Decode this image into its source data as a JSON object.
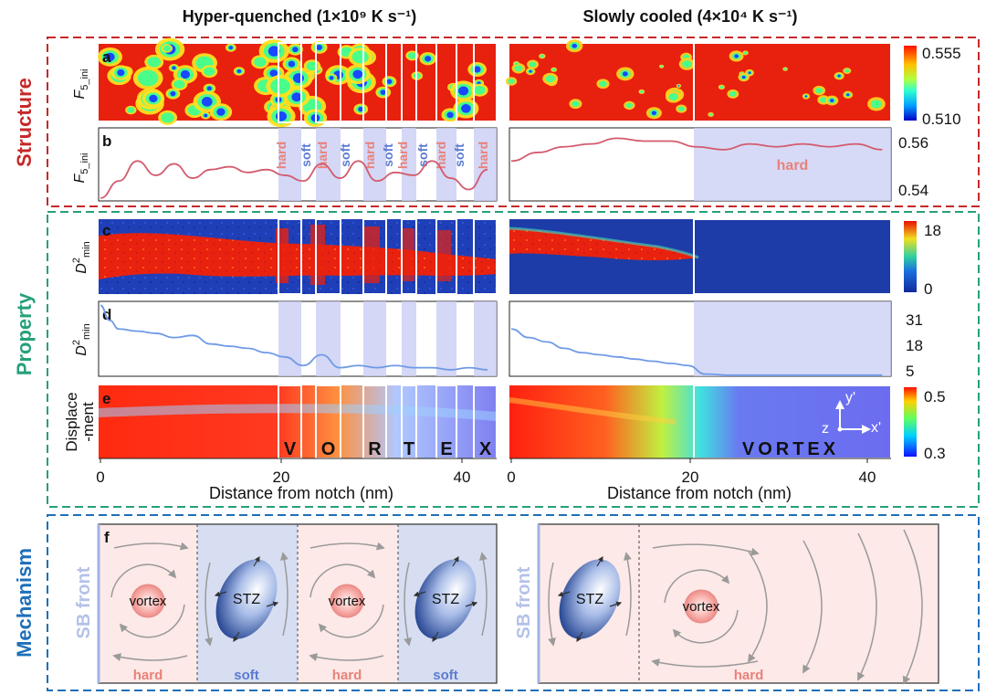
{
  "header": {
    "left_title": "Hyper-quenched (1×10⁹ K s⁻¹)",
    "right_title": "Slowly cooled (4×10⁴ K s⁻¹)"
  },
  "sections": {
    "structure": "Structure",
    "property": "Property",
    "mechanism": "Mechanism"
  },
  "panels": {
    "a": {
      "letter": "a",
      "ylabel": "F5_ini",
      "ylabel_base": "F",
      "ylabel_sub": "5_ini",
      "colorbar": {
        "max": "0.555",
        "min": "0.510"
      }
    },
    "b": {
      "letter": "b",
      "ylabel_base": "F",
      "ylabel_sub": "5_ini",
      "ticks": [
        "0.56",
        "0.54"
      ]
    },
    "c": {
      "letter": "c",
      "ylabel_base": "D",
      "ylabel_sup": "2",
      "ylabel_sub": "min",
      "colorbar": {
        "max": "18",
        "min": "0"
      }
    },
    "d": {
      "letter": "d",
      "ylabel_base": "D",
      "ylabel_sup": "2",
      "ylabel_sub": "min",
      "ticks": [
        "31",
        "18",
        "5"
      ]
    },
    "e": {
      "letter": "e",
      "ylabel_line1": "Displace",
      "ylabel_line2": "-ment",
      "colorbar": {
        "max": "0.5",
        "min": "0.3"
      },
      "vortex_letters": [
        "V",
        "O",
        "R",
        "T",
        "E",
        "X"
      ],
      "vortex_word": "VORTEX",
      "axes_labels": {
        "y": "y'",
        "x": "x'",
        "z": "z"
      }
    },
    "f": {
      "letter": "f"
    }
  },
  "band_labels_left": [
    {
      "text": "hard",
      "kind": "hard"
    },
    {
      "text": "soft",
      "kind": "soft"
    },
    {
      "text": "hard",
      "kind": "hard"
    },
    {
      "text": "soft",
      "kind": "soft"
    },
    {
      "text": "hard",
      "kind": "hard"
    },
    {
      "text": "soft",
      "kind": "soft"
    },
    {
      "text": "hard",
      "kind": "hard"
    },
    {
      "text": "soft",
      "kind": "soft"
    },
    {
      "text": "hard",
      "kind": "hard"
    },
    {
      "text": "soft",
      "kind": "soft"
    },
    {
      "text": "hard",
      "kind": "hard"
    }
  ],
  "band_label_right": "hard",
  "xaxis": {
    "label": "Distance from notch (nm)",
    "ticks": [
      "0",
      "20",
      "40"
    ]
  },
  "mechanism": {
    "sb_front": "SB front",
    "vortex": "vortex",
    "stz": "STZ",
    "hard": "hard",
    "soft": "soft"
  },
  "colors": {
    "structure_border": "#c62828",
    "property_border": "#26a07a",
    "mechanism_border": "#1e6fb8",
    "hard_text": "#e8827b",
    "soft_text": "#5b7bd0",
    "band_fill": "#c9cdf3",
    "curve_b": "#d35b6e",
    "curve_d": "#6f9ae6"
  },
  "chart_data": [
    {
      "type": "line",
      "panel": "b (hyper-quenched)",
      "x": [
        0,
        2,
        4,
        6,
        8,
        10,
        12,
        14,
        16,
        18,
        20,
        22,
        24,
        26,
        28,
        30,
        32,
        34,
        36,
        38,
        40,
        42
      ],
      "y": [
        0.538,
        0.544,
        0.551,
        0.546,
        0.55,
        0.545,
        0.548,
        0.549,
        0.547,
        0.548,
        0.546,
        0.544,
        0.55,
        0.545,
        0.551,
        0.544,
        0.547,
        0.546,
        0.551,
        0.545,
        0.541,
        0.548
      ],
      "xlim": [
        0,
        43
      ],
      "ylim": [
        0.537,
        0.562
      ]
    },
    {
      "type": "line",
      "panel": "b (slowly cooled)",
      "x": [
        0,
        3,
        6,
        9,
        12,
        15,
        18,
        21,
        24,
        27,
        30,
        33,
        36,
        39,
        42
      ],
      "y": [
        0.551,
        0.554,
        0.556,
        0.557,
        0.559,
        0.558,
        0.558,
        0.556,
        0.555,
        0.557,
        0.556,
        0.557,
        0.556,
        0.557,
        0.555
      ],
      "xlim": [
        0,
        43
      ],
      "ylim": [
        0.537,
        0.562
      ]
    },
    {
      "type": "line",
      "panel": "d (hyper-quenched)",
      "x": [
        0,
        1,
        2,
        4,
        6,
        8,
        10,
        12,
        14,
        16,
        18,
        20,
        22,
        24,
        26,
        28,
        30,
        32,
        34,
        36,
        38,
        40,
        42
      ],
      "y": [
        35,
        28,
        24,
        23,
        22,
        20,
        21,
        17,
        16,
        15,
        13,
        11,
        7,
        12,
        6,
        7,
        6,
        7,
        6,
        6,
        5,
        6,
        5
      ],
      "xlim": [
        0,
        43
      ],
      "ylim": [
        2,
        36
      ]
    },
    {
      "type": "line",
      "panel": "d (slowly cooled)",
      "x": [
        0,
        2,
        4,
        6,
        8,
        10,
        12,
        14,
        16,
        18,
        20,
        22,
        25,
        30,
        35,
        40,
        42
      ],
      "y": [
        24,
        20,
        18,
        15,
        13,
        12,
        11,
        10,
        9,
        8,
        7,
        3,
        2.5,
        2.5,
        2.5,
        2.5,
        2.5
      ],
      "xlim": [
        0,
        43
      ],
      "ylim": [
        2,
        36
      ]
    }
  ]
}
